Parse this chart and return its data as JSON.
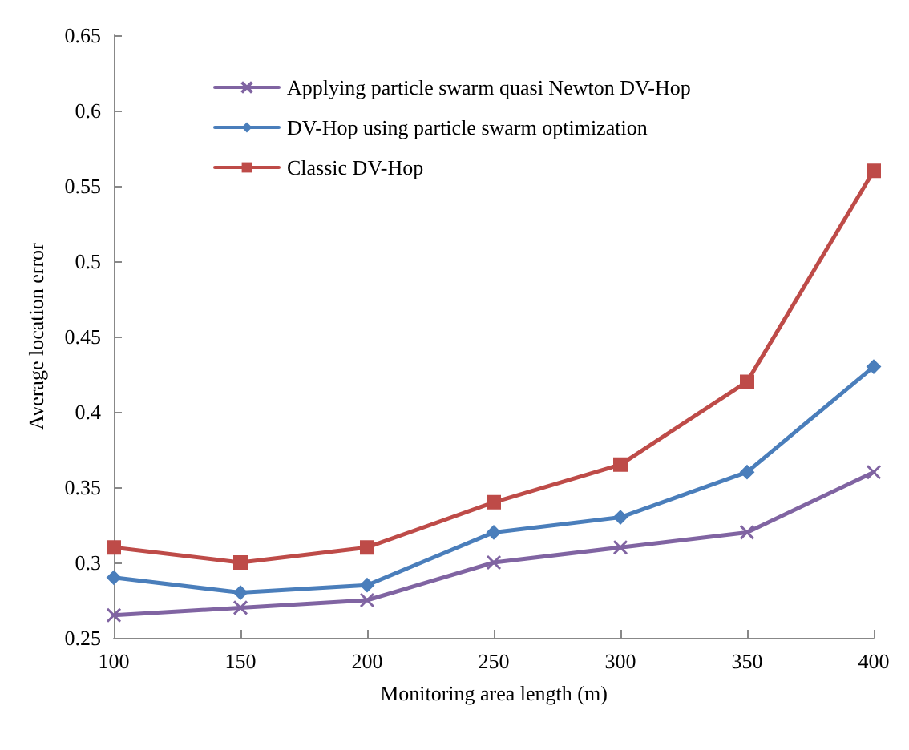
{
  "chart_data": {
    "type": "line",
    "xlabel": "Monitoring area length (m)",
    "ylabel": "Average location error",
    "x": [
      100,
      150,
      200,
      250,
      300,
      350,
      400
    ],
    "xlim": [
      100,
      400
    ],
    "xticks": [
      100,
      150,
      200,
      250,
      300,
      350,
      400
    ],
    "ylim": [
      0.25,
      0.65
    ],
    "yticks": [
      0.25,
      0.3,
      0.35,
      0.4,
      0.45,
      0.5,
      0.55,
      0.6,
      0.65
    ],
    "grid": false,
    "legend": "top left",
    "line_style": "solid",
    "series": [
      {
        "name": "Applying particle swarm quasi Newton DV-Hop",
        "color": "#8064a2",
        "marker": "cross",
        "values": [
          0.265,
          0.27,
          0.275,
          0.3,
          0.31,
          0.32,
          0.36
        ]
      },
      {
        "name": "DV-Hop using particle swarm optimization",
        "color": "#4a7ebb",
        "marker": "diamond",
        "values": [
          0.29,
          0.28,
          0.285,
          0.32,
          0.33,
          0.36,
          0.43
        ]
      },
      {
        "name": "Classic DV-Hop",
        "color": "#be4b48",
        "marker": "square",
        "values": [
          0.31,
          0.3,
          0.31,
          0.34,
          0.365,
          0.42,
          0.56
        ]
      }
    ]
  }
}
